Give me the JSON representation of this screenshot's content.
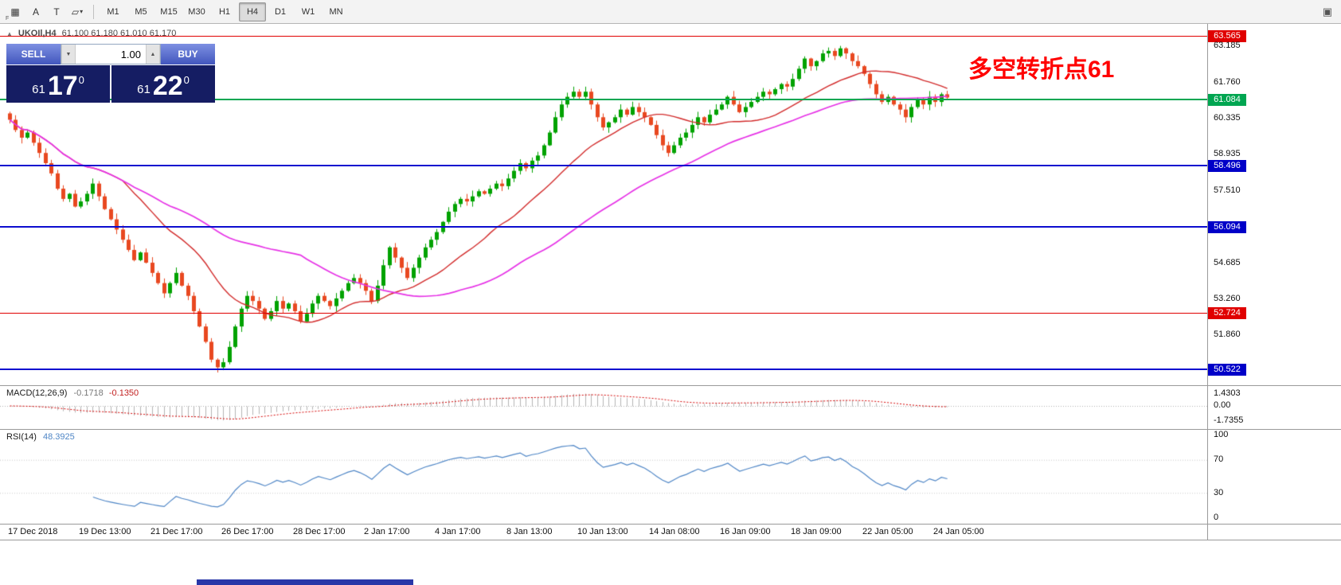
{
  "toolbar": {
    "tools": [
      {
        "name": "grid-icon",
        "glyph": "▦",
        "sub": "F"
      },
      {
        "name": "annotation-letter-icon",
        "glyph": "A"
      },
      {
        "name": "text-tool-icon",
        "glyph": "T"
      },
      {
        "name": "shapes-tool-icon",
        "glyph": "▱",
        "chevron": "▾"
      }
    ],
    "timeframes": [
      "M1",
      "M5",
      "M15",
      "M30",
      "H1",
      "H4",
      "D1",
      "W1",
      "MN"
    ],
    "active_timeframe": "H4",
    "window_icon_glyph": "▣"
  },
  "chart": {
    "symbol": "UKOIl,H4",
    "quote": "61.100 61.180 61.010 61.170",
    "collapse_glyph": "▲"
  },
  "trade_panel": {
    "sell_label": "SELL",
    "buy_label": "BUY",
    "volume": "1.00",
    "down_glyph": "▼",
    "up_glyph": "▲",
    "sell_price": {
      "small": "61",
      "big": "17",
      "sup": "0"
    },
    "buy_price": {
      "small": "61",
      "big": "22",
      "sup": "0"
    }
  },
  "annotation": {
    "text": "多空转折点61"
  },
  "price_axis": {
    "labels": [
      {
        "text": "63.185",
        "price": 63.185
      },
      {
        "text": "61.760",
        "price": 61.76
      },
      {
        "text": "60.335",
        "price": 60.335
      },
      {
        "text": "58.935",
        "price": 58.935
      },
      {
        "text": "57.510",
        "price": 57.51
      },
      {
        "text": "54.685",
        "price": 54.685
      },
      {
        "text": "53.260",
        "price": 53.26
      },
      {
        "text": "51.860",
        "price": 51.86
      }
    ]
  },
  "colors": {
    "candle_up": "#00A200",
    "candle_down": "#E84820",
    "ma_fast": "#D22B2B",
    "ma_slow": "#E632E6",
    "line_red": "#E00000",
    "line_green": "#00A651",
    "line_blue": "#0D0DCF",
    "tag_red": "#E00000",
    "tag_green": "#00A651",
    "tag_blue": "#0000C8",
    "macd_signal": "#D40000",
    "macd_hist": "#B4B4B4",
    "rsi": "#4F86C6",
    "annotation": "#FF0000"
  },
  "chart_data": {
    "type": "candlestick",
    "symbol": "UKOIL",
    "timeframe": "H4",
    "quote_ohlc": {
      "open": 61.1,
      "high": 61.18,
      "low": 61.01,
      "close": 61.17
    },
    "first_open": 60.55,
    "closes": [
      60.3,
      59.9,
      59.6,
      59.8,
      59.4,
      59.0,
      58.6,
      58.2,
      57.6,
      57.2,
      57.4,
      56.9,
      57.1,
      57.4,
      57.8,
      57.3,
      56.8,
      56.4,
      56.0,
      55.6,
      55.2,
      54.8,
      55.1,
      54.7,
      54.3,
      53.9,
      53.5,
      53.9,
      54.3,
      53.8,
      53.4,
      52.8,
      52.2,
      51.6,
      50.9,
      50.6,
      50.8,
      51.4,
      52.2,
      52.9,
      53.4,
      53.2,
      52.9,
      52.5,
      52.8,
      53.2,
      52.9,
      53.1,
      52.8,
      52.4,
      52.7,
      53.1,
      53.4,
      53.2,
      53.0,
      53.3,
      53.6,
      53.9,
      54.1,
      53.9,
      53.6,
      53.2,
      53.8,
      54.6,
      55.3,
      54.9,
      54.5,
      54.1,
      54.5,
      54.9,
      55.3,
      55.6,
      55.9,
      56.3,
      56.7,
      57.0,
      57.2,
      57.1,
      57.3,
      57.5,
      57.4,
      57.6,
      57.8,
      57.7,
      58.0,
      58.3,
      58.6,
      58.4,
      58.7,
      58.9,
      59.3,
      59.8,
      60.4,
      60.9,
      61.2,
      61.4,
      61.2,
      61.4,
      60.9,
      60.4,
      60.0,
      60.2,
      60.4,
      60.7,
      60.5,
      60.8,
      60.6,
      60.4,
      60.1,
      59.7,
      59.3,
      59.0,
      59.3,
      59.6,
      59.8,
      60.1,
      60.4,
      60.2,
      60.5,
      60.7,
      60.9,
      61.2,
      60.9,
      60.6,
      60.8,
      61.0,
      61.2,
      61.4,
      61.3,
      61.5,
      61.7,
      61.6,
      61.9,
      62.3,
      62.7,
      62.4,
      62.6,
      62.9,
      63.0,
      62.8,
      63.1,
      62.9,
      62.6,
      62.4,
      62.1,
      61.7,
      61.3,
      61.0,
      61.2,
      60.9,
      60.7,
      60.4,
      60.8,
      61.1,
      60.9,
      61.2,
      61.0,
      61.3,
      61.17
    ],
    "x_labels": [
      {
        "text": "17 Dec 2018",
        "bar": 0
      },
      {
        "text": "19 Dec 13:00",
        "bar": 12
      },
      {
        "text": "21 Dec 17:00",
        "bar": 24
      },
      {
        "text": "26 Dec 17:00",
        "bar": 36
      },
      {
        "text": "28 Dec 17:00",
        "bar": 48
      },
      {
        "text": "2 Jan 17:00",
        "bar": 60
      },
      {
        "text": "4 Jan 17:00",
        "bar": 72
      },
      {
        "text": "8 Jan 13:00",
        "bar": 84
      },
      {
        "text": "10 Jan 13:00",
        "bar": 96
      },
      {
        "text": "14 Jan 08:00",
        "bar": 108
      },
      {
        "text": "16 Jan 09:00",
        "bar": 120
      },
      {
        "text": "18 Jan 09:00",
        "bar": 132
      },
      {
        "text": "22 Jan 05:00",
        "bar": 144
      },
      {
        "text": "24 Jan 05:00",
        "bar": 156
      }
    ],
    "levels": [
      {
        "price": 63.565,
        "label": "63.565",
        "color": "red"
      },
      {
        "price": 61.084,
        "label": "61.084",
        "color": "green"
      },
      {
        "price": 58.496,
        "label": "58.496",
        "color": "blue"
      },
      {
        "price": 56.094,
        "label": "56.094",
        "color": "blue"
      },
      {
        "price": 52.724,
        "label": "52.724",
        "color": "red"
      },
      {
        "price": 50.522,
        "label": "50.522",
        "color": "blue"
      }
    ],
    "overlays": [
      {
        "name": "ma-fast",
        "period": 20,
        "color_key": "ma_fast"
      },
      {
        "name": "ma-slow",
        "period": 50,
        "color_key": "ma_slow"
      }
    ],
    "indicators": {
      "macd": {
        "label": "MACD(12,26,9)",
        "main_value": "-0.1718",
        "signal_value": "-0.1350",
        "scale_labels": [
          "1.4303",
          "0.00",
          "-1.7355"
        ],
        "params": [
          12,
          26,
          9
        ]
      },
      "rsi": {
        "label": "RSI(14)",
        "value": "48.3925",
        "scale_labels": [
          "100",
          "70",
          "30",
          "0"
        ],
        "period": 14
      }
    }
  }
}
